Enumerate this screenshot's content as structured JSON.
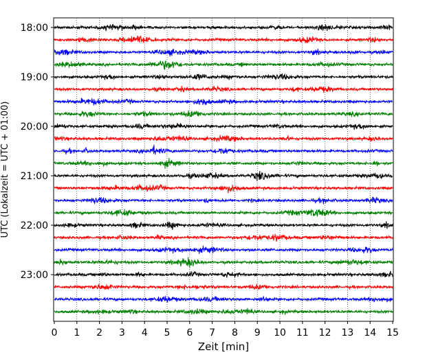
{
  "chart_data": {
    "type": "line",
    "title": "",
    "xlabel": "Zeit  [min]",
    "ylabel": "UTC (Lokalzeit = UTC + 01:00)",
    "xlim": [
      0,
      15
    ],
    "x_ticks": [
      "0",
      "1",
      "2",
      "3",
      "4",
      "5",
      "6",
      "7",
      "8",
      "9",
      "10",
      "11",
      "12",
      "13",
      "14",
      "15"
    ],
    "y_ticks": [
      "18:00",
      "19:00",
      "20:00",
      "21:00",
      "22:00",
      "23:00"
    ],
    "trace_interval_minutes": 15,
    "traces": [
      {
        "start": "18:00",
        "color": "#000000"
      },
      {
        "start": "18:15",
        "color": "#ff0000"
      },
      {
        "start": "18:30",
        "color": "#0000ff"
      },
      {
        "start": "18:45",
        "color": "#008000"
      },
      {
        "start": "19:00",
        "color": "#000000"
      },
      {
        "start": "19:15",
        "color": "#ff0000"
      },
      {
        "start": "19:30",
        "color": "#0000ff"
      },
      {
        "start": "19:45",
        "color": "#008000"
      },
      {
        "start": "20:00",
        "color": "#000000"
      },
      {
        "start": "20:15",
        "color": "#ff0000"
      },
      {
        "start": "20:30",
        "color": "#0000ff"
      },
      {
        "start": "20:45",
        "color": "#008000"
      },
      {
        "start": "21:00",
        "color": "#000000"
      },
      {
        "start": "21:15",
        "color": "#ff0000"
      },
      {
        "start": "21:30",
        "color": "#0000ff"
      },
      {
        "start": "21:45",
        "color": "#008000"
      },
      {
        "start": "22:00",
        "color": "#000000"
      },
      {
        "start": "22:15",
        "color": "#ff0000"
      },
      {
        "start": "22:30",
        "color": "#0000ff"
      },
      {
        "start": "22:45",
        "color": "#008000"
      },
      {
        "start": "23:00",
        "color": "#000000"
      },
      {
        "start": "23:15",
        "color": "#ff0000"
      },
      {
        "start": "23:30",
        "color": "#0000ff"
      },
      {
        "start": "23:45",
        "color": "#008000"
      }
    ],
    "grid": "vertical dotted"
  }
}
